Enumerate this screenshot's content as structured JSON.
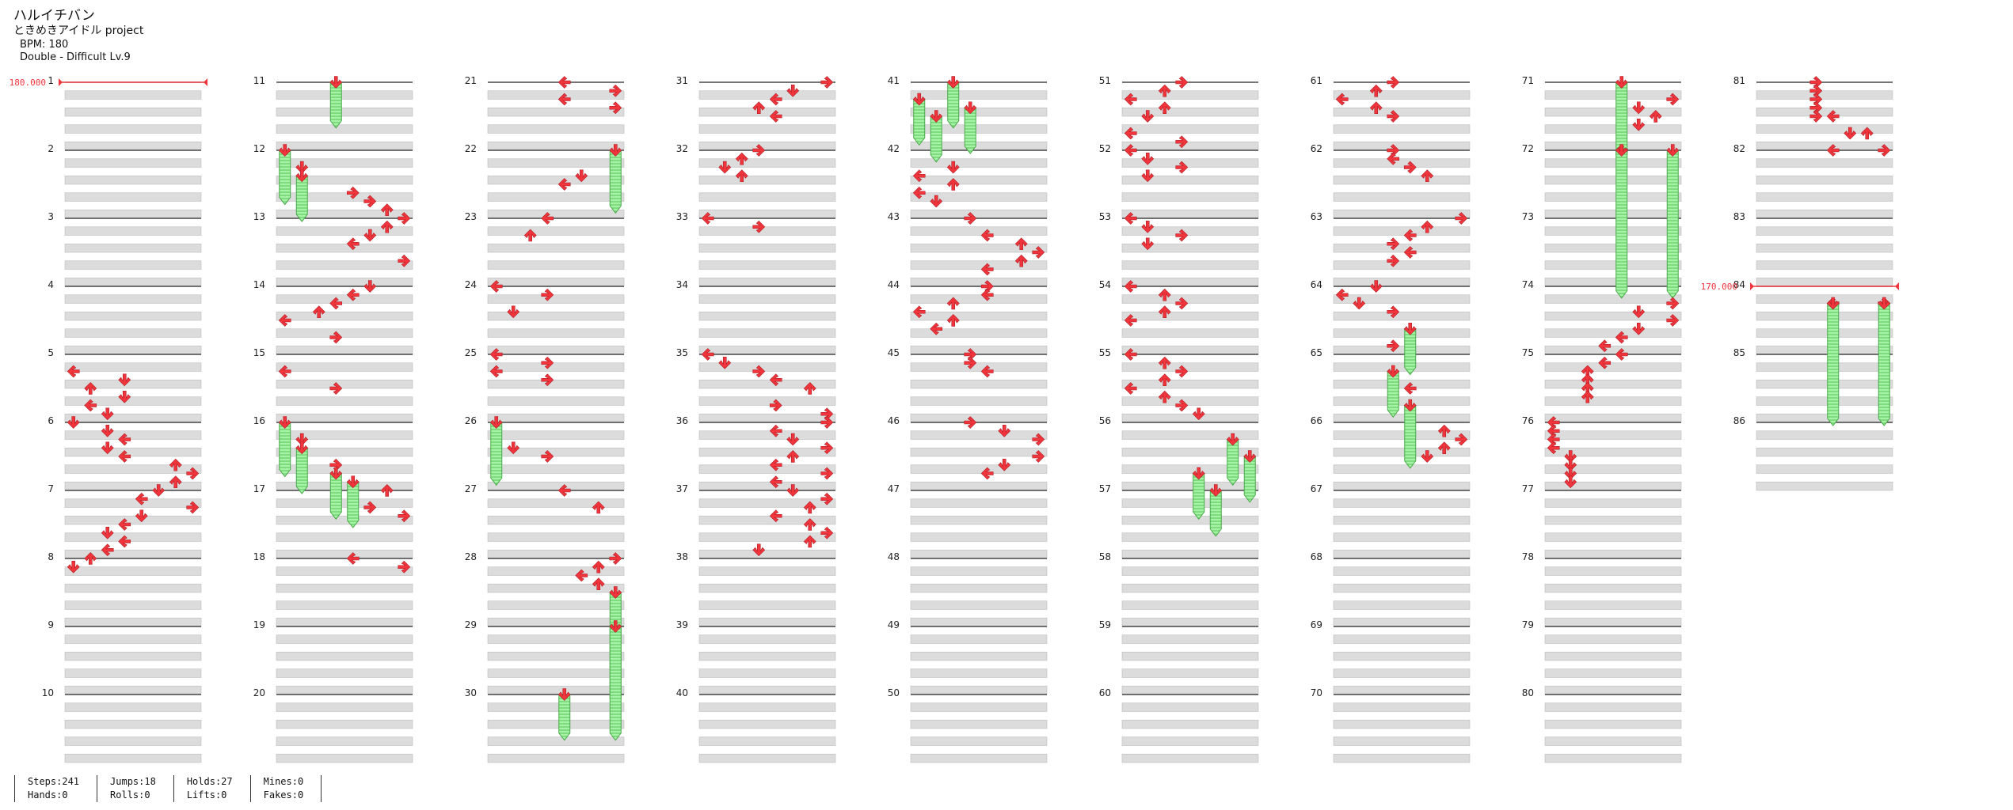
{
  "song": {
    "title": "ハルイチバン",
    "artist": "ときめきアイドル project",
    "bpm": "BPM: 180",
    "chart": "Double - Difficult  Lv.9"
  },
  "bpm_changes": [
    {
      "measure": 1,
      "label": "180.000"
    },
    {
      "measure": 84,
      "label": "170.000"
    }
  ],
  "colors": {
    "arrow": "#f0353d",
    "hold": "#9ff09f",
    "hold_stripe": "#3fbf3f",
    "lane": "#dcdcdc"
  },
  "notes": {
    "1": [],
    "2": [],
    "3": [],
    "4": [],
    "5": [
      [
        4,
        0,
        "L"
      ],
      [
        6,
        3,
        "D"
      ],
      [
        8,
        1,
        "U"
      ],
      [
        10,
        3,
        "D"
      ],
      [
        12,
        1,
        "L"
      ],
      [
        14,
        2,
        "D"
      ]
    ],
    "6": [
      [
        0,
        0,
        "D"
      ],
      [
        2,
        2,
        "D"
      ],
      [
        4,
        3,
        "L"
      ],
      [
        6,
        2,
        "D"
      ],
      [
        8,
        3,
        "L"
      ],
      [
        10,
        6,
        "U"
      ],
      [
        12,
        7,
        "R"
      ],
      [
        14,
        6,
        "U"
      ]
    ],
    "7": [
      [
        0,
        5,
        "D"
      ],
      [
        2,
        4,
        "L"
      ],
      [
        4,
        7,
        "R"
      ],
      [
        6,
        4,
        "D"
      ],
      [
        8,
        3,
        "L"
      ],
      [
        10,
        2,
        "D"
      ],
      [
        12,
        3,
        "L"
      ],
      [
        14,
        2,
        "L"
      ]
    ],
    "8": [
      [
        0,
        1,
        "U"
      ],
      [
        2,
        0,
        "D"
      ]
    ],
    "11": [
      [
        0,
        3,
        "H",
        2.5
      ]
    ],
    "12": [
      [
        0,
        0,
        "H",
        3
      ],
      [
        4,
        1,
        "D"
      ],
      [
        6,
        1,
        "H",
        2.5
      ],
      [
        10,
        4,
        "R"
      ],
      [
        12,
        5,
        "R"
      ],
      [
        14,
        6,
        "U"
      ]
    ],
    "13": [
      [
        0,
        7,
        "R"
      ],
      [
        2,
        6,
        "U"
      ],
      [
        4,
        5,
        "D"
      ],
      [
        6,
        4,
        "L"
      ],
      [
        10,
        7,
        "R"
      ]
    ],
    "14": [
      [
        0,
        5,
        "D"
      ],
      [
        2,
        4,
        "L"
      ],
      [
        4,
        3,
        "L"
      ],
      [
        6,
        2,
        "U"
      ],
      [
        8,
        0,
        "L"
      ],
      [
        12,
        3,
        "R"
      ]
    ],
    "15": [
      [
        4,
        0,
        "L"
      ],
      [
        8,
        3,
        "R"
      ]
    ],
    "16": [
      [
        0,
        0,
        "H",
        3
      ],
      [
        4,
        1,
        "D"
      ],
      [
        6,
        1,
        "H",
        2.5
      ],
      [
        10,
        3,
        "R"
      ],
      [
        12,
        3,
        "H",
        2.5
      ],
      [
        14,
        4,
        "H",
        2.5
      ]
    ],
    "17": [
      [
        0,
        6,
        "U"
      ],
      [
        4,
        5,
        "R"
      ],
      [
        6,
        7,
        "R"
      ]
    ],
    "18": [
      [
        0,
        4,
        "L"
      ],
      [
        2,
        7,
        "R"
      ]
    ],
    "21": [
      [
        0,
        4,
        "L"
      ],
      [
        2,
        7,
        "R"
      ],
      [
        4,
        4,
        "L"
      ],
      [
        6,
        7,
        "R"
      ]
    ],
    "22": [
      [
        0,
        7,
        "H",
        3.5
      ],
      [
        6,
        5,
        "D"
      ],
      [
        8,
        4,
        "L"
      ]
    ],
    "23": [
      [
        0,
        3,
        "L"
      ],
      [
        4,
        2,
        "U"
      ]
    ],
    "24": [
      [
        0,
        0,
        "L"
      ],
      [
        2,
        3,
        "R"
      ],
      [
        6,
        1,
        "D"
      ]
    ],
    "25": [
      [
        0,
        0,
        "L"
      ],
      [
        2,
        3,
        "R"
      ],
      [
        4,
        0,
        "L"
      ],
      [
        6,
        3,
        "R"
      ]
    ],
    "26": [
      [
        0,
        0,
        "H",
        3.5
      ],
      [
        6,
        1,
        "D"
      ],
      [
        8,
        3,
        "R"
      ]
    ],
    "27": [
      [
        0,
        4,
        "L"
      ],
      [
        4,
        6,
        "U"
      ]
    ],
    "28": [
      [
        0,
        7,
        "R"
      ],
      [
        2,
        6,
        "U"
      ],
      [
        4,
        5,
        "L"
      ],
      [
        6,
        6,
        "U"
      ],
      [
        8,
        7,
        "H",
        6.5
      ]
    ],
    "29": [
      [
        0,
        7,
        "H",
        6.5
      ]
    ],
    "30": [
      [
        0,
        4,
        "H",
        2.5
      ]
    ],
    "31": [
      [
        0,
        7,
        "R"
      ],
      [
        2,
        5,
        "D"
      ],
      [
        4,
        4,
        "L"
      ],
      [
        6,
        3,
        "U"
      ],
      [
        8,
        4,
        "L"
      ]
    ],
    "32": [
      [
        0,
        3,
        "R"
      ],
      [
        2,
        2,
        "U"
      ],
      [
        4,
        1,
        "D"
      ],
      [
        6,
        2,
        "U"
      ]
    ],
    "33": [
      [
        0,
        0,
        "L"
      ],
      [
        2,
        3,
        "R"
      ]
    ],
    "35": [
      [
        0,
        0,
        "L"
      ],
      [
        2,
        1,
        "D"
      ],
      [
        4,
        3,
        "R"
      ],
      [
        6,
        4,
        "L"
      ],
      [
        8,
        6,
        "U"
      ],
      [
        12,
        4,
        "R"
      ],
      [
        14,
        7,
        "R"
      ]
    ],
    "36": [
      [
        0,
        7,
        "R"
      ],
      [
        2,
        4,
        "L"
      ],
      [
        4,
        5,
        "D"
      ],
      [
        6,
        7,
        "R"
      ],
      [
        8,
        5,
        "U"
      ],
      [
        10,
        4,
        "L"
      ],
      [
        12,
        7,
        "R"
      ],
      [
        14,
        4,
        "L"
      ]
    ],
    "37": [
      [
        0,
        5,
        "D"
      ],
      [
        2,
        7,
        "R"
      ],
      [
        4,
        6,
        "U"
      ],
      [
        6,
        4,
        "L"
      ],
      [
        8,
        6,
        "U"
      ],
      [
        10,
        7,
        "R"
      ],
      [
        12,
        6,
        "U"
      ],
      [
        14,
        3,
        "D"
      ]
    ],
    "41": [
      [
        0,
        2,
        "H",
        2.5
      ],
      [
        4,
        0,
        "H",
        2.5
      ],
      [
        6,
        3,
        "H",
        2.5
      ],
      [
        8,
        1,
        "H",
        2.5
      ]
    ],
    "42": [
      [
        4,
        2,
        "D"
      ],
      [
        6,
        0,
        "L"
      ],
      [
        8,
        2,
        "U"
      ],
      [
        10,
        0,
        "L"
      ],
      [
        12,
        1,
        "D"
      ]
    ],
    "43": [
      [
        0,
        3,
        "R"
      ],
      [
        4,
        4,
        "L"
      ],
      [
        6,
        6,
        "U"
      ],
      [
        8,
        7,
        "R"
      ],
      [
        10,
        6,
        "U"
      ],
      [
        12,
        4,
        "L"
      ]
    ],
    "44": [
      [
        0,
        4,
        "R"
      ],
      [
        2,
        4,
        "L"
      ],
      [
        4,
        2,
        "U"
      ],
      [
        6,
        0,
        "L"
      ],
      [
        8,
        2,
        "U"
      ],
      [
        10,
        1,
        "L"
      ]
    ],
    "45": [
      [
        0,
        3,
        "R"
      ],
      [
        2,
        3,
        "R"
      ],
      [
        4,
        4,
        "L"
      ]
    ],
    "46": [
      [
        0,
        3,
        "R"
      ],
      [
        2,
        5,
        "D"
      ],
      [
        4,
        7,
        "R"
      ],
      [
        8,
        7,
        "R"
      ],
      [
        10,
        5,
        "D"
      ],
      [
        12,
        4,
        "L"
      ]
    ],
    "51": [
      [
        0,
        3,
        "R"
      ],
      [
        2,
        2,
        "U"
      ],
      [
        4,
        0,
        "L"
      ],
      [
        6,
        2,
        "U"
      ],
      [
        8,
        1,
        "D"
      ],
      [
        12,
        0,
        "L"
      ],
      [
        14,
        3,
        "R"
      ]
    ],
    "52": [
      [
        0,
        0,
        "L"
      ],
      [
        2,
        1,
        "D"
      ],
      [
        4,
        3,
        "R"
      ],
      [
        6,
        1,
        "D"
      ]
    ],
    "53": [
      [
        0,
        0,
        "L"
      ],
      [
        2,
        1,
        "D"
      ],
      [
        4,
        3,
        "R"
      ],
      [
        6,
        1,
        "D"
      ]
    ],
    "54": [
      [
        0,
        0,
        "L"
      ],
      [
        2,
        2,
        "U"
      ],
      [
        4,
        3,
        "R"
      ],
      [
        6,
        2,
        "U"
      ],
      [
        8,
        0,
        "L"
      ]
    ],
    "55": [
      [
        0,
        0,
        "L"
      ],
      [
        2,
        2,
        "U"
      ],
      [
        4,
        3,
        "R"
      ],
      [
        6,
        2,
        "U"
      ],
      [
        8,
        0,
        "L"
      ],
      [
        10,
        2,
        "U"
      ],
      [
        12,
        3,
        "R"
      ],
      [
        14,
        4,
        "D"
      ]
    ],
    "56": [
      [
        4,
        6,
        "H",
        2.5
      ],
      [
        8,
        7,
        "H",
        2.5
      ],
      [
        12,
        4,
        "H",
        2.5
      ],
      [
        16,
        5,
        "H",
        2.5
      ]
    ],
    "61": [
      [
        0,
        3,
        "R"
      ],
      [
        2,
        2,
        "U"
      ],
      [
        4,
        0,
        "L"
      ],
      [
        6,
        2,
        "U"
      ],
      [
        8,
        3,
        "R"
      ]
    ],
    "62": [
      [
        0,
        3,
        "R"
      ],
      [
        2,
        3,
        "L"
      ],
      [
        4,
        4,
        "R"
      ],
      [
        6,
        5,
        "U"
      ]
    ],
    "63": [
      [
        0,
        7,
        "R"
      ],
      [
        2,
        5,
        "U"
      ],
      [
        4,
        4,
        "L"
      ],
      [
        6,
        3,
        "R"
      ],
      [
        8,
        4,
        "L"
      ],
      [
        10,
        3,
        "R"
      ]
    ],
    "64": [
      [
        0,
        2,
        "D"
      ],
      [
        2,
        0,
        "L"
      ],
      [
        4,
        1,
        "D"
      ],
      [
        6,
        3,
        "R"
      ],
      [
        10,
        4,
        "H",
        2.5
      ],
      [
        14,
        3,
        "R"
      ]
    ],
    "65": [
      [
        4,
        3,
        "H",
        2.5
      ],
      [
        8,
        4,
        "L"
      ],
      [
        12,
        4,
        "H",
        3.5
      ]
    ],
    "66": [
      [
        2,
        6,
        "U"
      ],
      [
        4,
        7,
        "R"
      ],
      [
        6,
        6,
        "U"
      ],
      [
        8,
        5,
        "D"
      ]
    ],
    "71": [
      [
        0,
        4,
        "H",
        4.5
      ],
      [
        4,
        7,
        "R"
      ],
      [
        6,
        5,
        "D"
      ],
      [
        8,
        6,
        "U"
      ],
      [
        10,
        5,
        "D"
      ]
    ],
    "72": [
      [
        0,
        4,
        "L"
      ],
      [
        0,
        7,
        "H",
        8.5
      ],
      [
        0,
        4,
        "H",
        8.5
      ]
    ],
    "74": [
      [
        4,
        7,
        "R"
      ],
      [
        6,
        5,
        "D"
      ],
      [
        8,
        7,
        "R"
      ],
      [
        10,
        5,
        "D"
      ],
      [
        12,
        4,
        "L"
      ],
      [
        14,
        3,
        "L"
      ]
    ],
    "75": [
      [
        0,
        4,
        "L"
      ],
      [
        2,
        3,
        "L"
      ],
      [
        4,
        2,
        "U"
      ],
      [
        6,
        2,
        "U"
      ],
      [
        8,
        2,
        "U"
      ],
      [
        10,
        2,
        "U"
      ]
    ],
    "76": [
      [
        0,
        0,
        "L"
      ],
      [
        2,
        0,
        "L"
      ],
      [
        4,
        0,
        "L"
      ],
      [
        6,
        0,
        "L"
      ],
      [
        8,
        1,
        "D"
      ],
      [
        10,
        1,
        "D"
      ],
      [
        12,
        1,
        "D"
      ],
      [
        14,
        1,
        "D"
      ]
    ],
    "81": [
      [
        0,
        3,
        "R"
      ],
      [
        2,
        3,
        "R"
      ],
      [
        4,
        3,
        "R"
      ],
      [
        6,
        3,
        "R"
      ],
      [
        8,
        3,
        "R"
      ],
      [
        8,
        4,
        "L"
      ],
      [
        12,
        5,
        "D"
      ],
      [
        12,
        6,
        "U"
      ]
    ],
    "82": [
      [
        0,
        4,
        "L"
      ],
      [
        0,
        7,
        "R"
      ]
    ],
    "84": [
      [
        4,
        4,
        "L"
      ],
      [
        4,
        7,
        "R"
      ],
      [
        4,
        4,
        "H",
        7
      ],
      [
        4,
        7,
        "H",
        7
      ]
    ]
  },
  "stats": [
    [
      "Steps:241",
      "Hands:0"
    ],
    [
      "Jumps:18",
      "Rolls:0"
    ],
    [
      "Holds:27",
      "Lifts:0"
    ],
    [
      "Mines:0",
      "Fakes:0"
    ]
  ]
}
